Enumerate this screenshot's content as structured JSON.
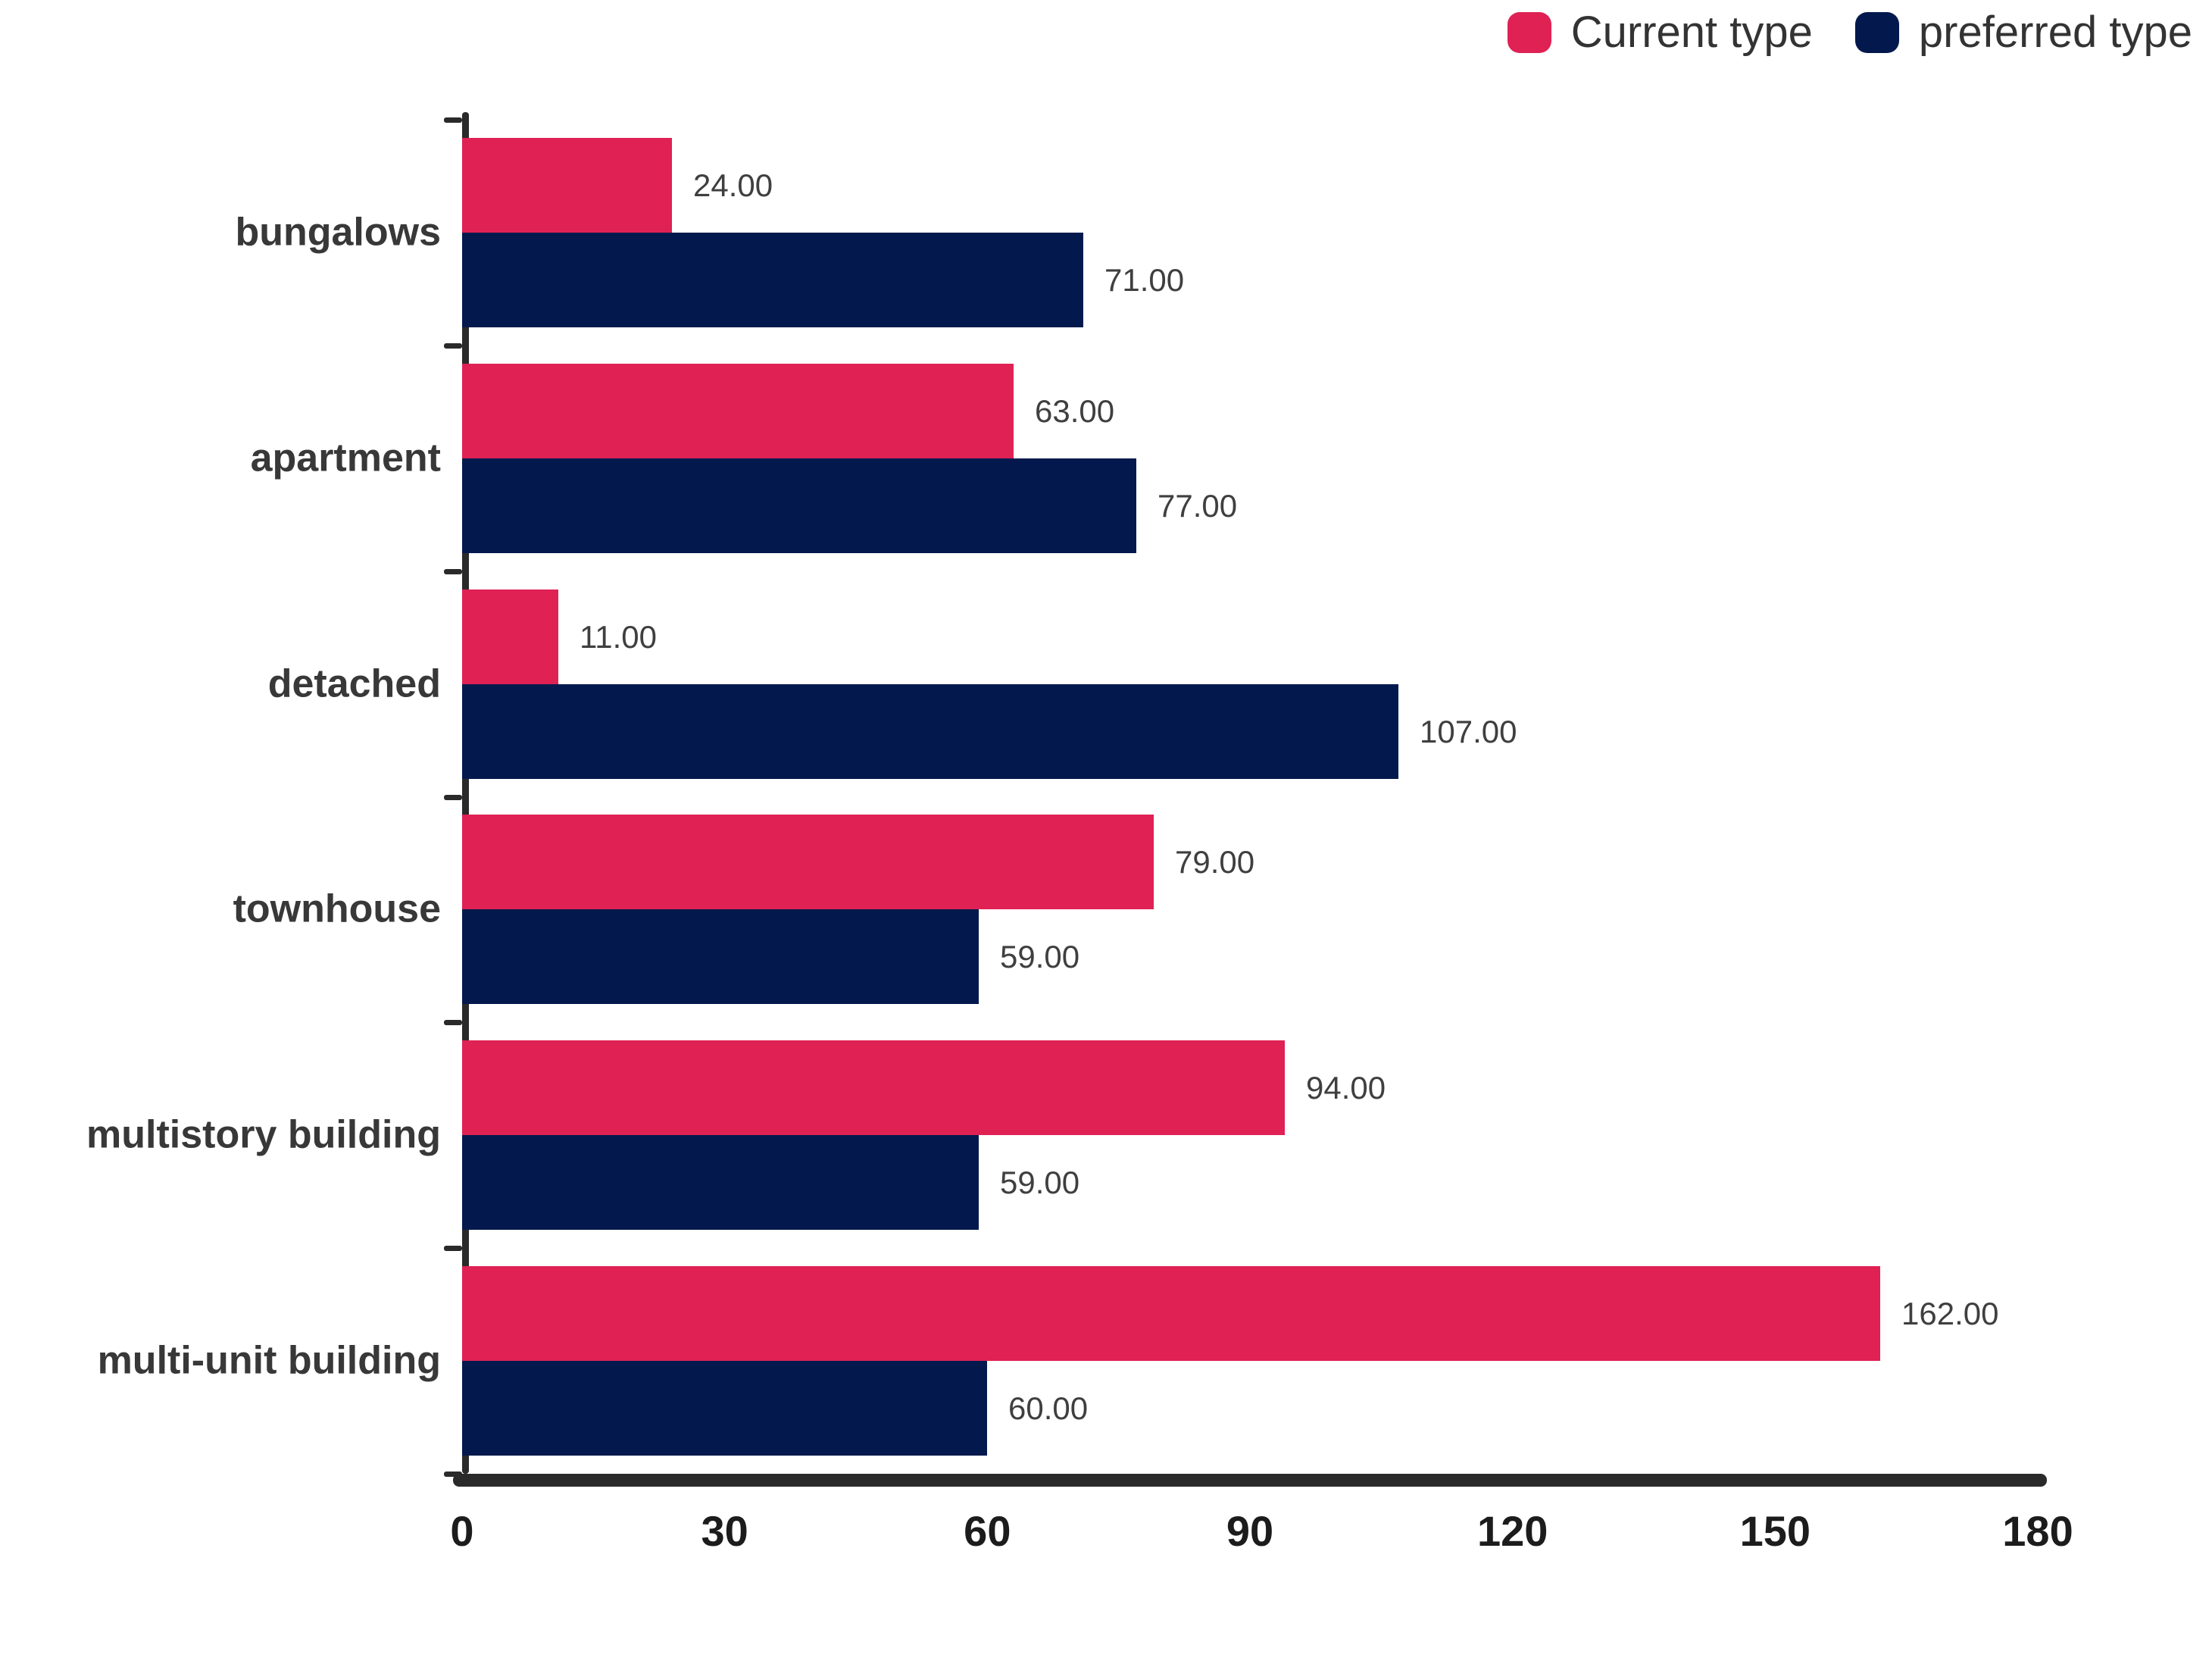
{
  "legend": {
    "items": [
      {
        "label": "Current type",
        "color": "#DF2154",
        "icon": "legend-swatch"
      },
      {
        "label": "preferred type",
        "color": "#03194D",
        "icon": "legend-swatch"
      }
    ]
  },
  "chart_data": {
    "type": "bar",
    "orientation": "horizontal",
    "title": "",
    "xlabel": "",
    "ylabel": "",
    "categories": [
      "bungalows",
      "apartment",
      "detached",
      "townhouse",
      "multistory building",
      "multi-unit building"
    ],
    "series": [
      {
        "name": "Current type",
        "color": "#DF2154",
        "values": [
          24,
          63,
          11,
          79,
          94,
          162
        ]
      },
      {
        "name": "preferred type",
        "color": "#03194D",
        "values": [
          71,
          77,
          107,
          59,
          59,
          60
        ]
      }
    ],
    "value_labels": {
      "Current type": [
        "24.00",
        "63.00",
        "11.00",
        "79.00",
        "94.00",
        "162.00"
      ],
      "preferred type": [
        "71.00",
        "77.00",
        "107.00",
        "59.00",
        "59.00",
        "60.00"
      ]
    },
    "xlim": [
      0,
      180
    ],
    "x_ticks": [
      "0",
      "30",
      "60",
      "90",
      "120",
      "150",
      "180"
    ],
    "grid": false,
    "legend_position": "top-right",
    "axis_color": "#2a2a2a"
  }
}
